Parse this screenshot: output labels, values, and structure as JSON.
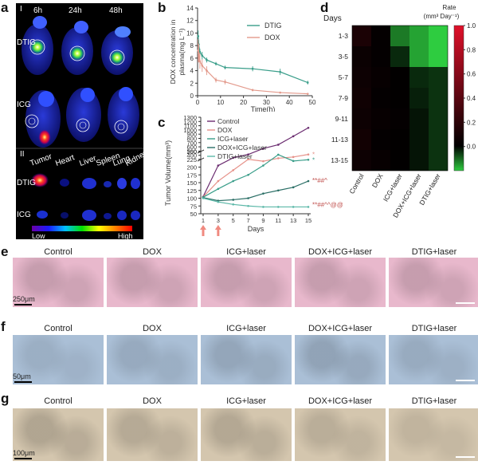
{
  "panel_labels": {
    "a": "a",
    "b": "b",
    "c": "c",
    "d": "d",
    "e": "e",
    "f": "f",
    "g": "g"
  },
  "panel_a": {
    "section_I": "I",
    "section_II": "II",
    "times": [
      "6h",
      "24h",
      "48h"
    ],
    "rows": [
      "DTIG",
      "ICG"
    ],
    "organs": [
      "Tumor",
      "Heart",
      "Liver",
      "Spleen",
      "Lung",
      "Kidney"
    ],
    "organ_rows": [
      "DTIG",
      "ICG"
    ],
    "colorbar_low": "Low",
    "colorbar_high": "High"
  },
  "panel_b": {
    "ylabel_line1": "DOX concentration in",
    "ylabel_line2": "plasma(mg L⁻¹)",
    "xlabel": "Time(h)"
  },
  "panel_c": {
    "ylabel": "Tumor Volume(mm³)",
    "xlabel": "Days",
    "sig_dox": "*",
    "sig_icg": "*",
    "sig_doxicg": "**##^",
    "sig_dtig": "**##^^@@"
  },
  "panel_d": {
    "title": "Days",
    "cbar_title_line1": "Rate",
    "cbar_title_line2": "(mm³ Day⁻¹)"
  },
  "histology": {
    "groups": [
      "Control",
      "DOX",
      "ICG+laser",
      "DOX+ICG+laser",
      "DTIG+laser"
    ],
    "scale_e": "250μm",
    "scale_f": "50μm",
    "scale_g": "100μm"
  },
  "chart_data": [
    {
      "type": "line",
      "panel": "b",
      "title": "",
      "xlabel": "Time(h)",
      "ylabel": "DOX concentration in plasma(mg L⁻¹)",
      "xlim": [
        0,
        50
      ],
      "ylim": [
        0,
        14
      ],
      "xticks": [
        0,
        10,
        20,
        30,
        40,
        50
      ],
      "yticks": [
        0,
        2,
        4,
        6,
        8,
        10,
        12,
        14
      ],
      "series": [
        {
          "name": "DTIG",
          "color": "#3a9e8a",
          "x": [
            0.25,
            0.5,
            1,
            2,
            4,
            8,
            12,
            24,
            36,
            48
          ],
          "y": [
            9.5,
            8.2,
            7.0,
            6.4,
            5.7,
            5.1,
            4.5,
            4.3,
            3.8,
            2.1
          ],
          "err": [
            0.9,
            0.7,
            0.5,
            0.6,
            0.4,
            0.3,
            0.3,
            0.4,
            0.5,
            0.3
          ]
        },
        {
          "name": "DOX",
          "color": "#e39a8c",
          "x": [
            0.25,
            0.5,
            1,
            2,
            4,
            8,
            12,
            24,
            36,
            48
          ],
          "y": [
            7.2,
            6.8,
            5.5,
            4.8,
            4.0,
            2.5,
            2.2,
            0.9,
            0.5,
            0.3
          ],
          "err": [
            1.8,
            1.5,
            1.2,
            1.0,
            0.7,
            0.4,
            0.4,
            0.2,
            0.1,
            0.1
          ]
        }
      ]
    },
    {
      "type": "line",
      "panel": "c",
      "title": "",
      "xlabel": "Days",
      "ylabel": "Tumor Volume(mm³)",
      "x": [
        1,
        3,
        5,
        7,
        9,
        11,
        13,
        15
      ],
      "yticks_lower": [
        50,
        75,
        100,
        125,
        150,
        175,
        200,
        225,
        250
      ],
      "yticks_upper": [
        300,
        400,
        500,
        600,
        700,
        800,
        900,
        1000,
        1100,
        1200,
        1300
      ],
      "ybreak": [
        250,
        300
      ],
      "laser_days": [
        1,
        3
      ],
      "series": [
        {
          "name": "Control",
          "color": "#6b2c70",
          "y": [
            105,
            205,
            340,
            420,
            560,
            650,
            850,
            1050
          ]
        },
        {
          "name": "DOX",
          "color": "#e6928a",
          "y": [
            104,
            155,
            190,
            225,
            260,
            330,
            360,
            420
          ]
        },
        {
          "name": "ICG+laser",
          "color": "#3a9e8a",
          "y": [
            103,
            130,
            155,
            175,
            205,
            240,
            265,
            295
          ]
        },
        {
          "name": "DOX+ICG+laser",
          "color": "#2b6f66",
          "y": [
            102,
            92,
            95,
            100,
            115,
            125,
            135,
            155
          ]
        },
        {
          "name": "DTIG+laser",
          "color": "#5cb8a8",
          "y": [
            100,
            88,
            80,
            75,
            72,
            72,
            72,
            72
          ]
        }
      ]
    },
    {
      "type": "heatmap",
      "panel": "d",
      "title": "",
      "columns": [
        "Control",
        "DOX",
        "ICG+laser",
        "DOX+ICG+laser",
        "DTIG+laser"
      ],
      "rows": [
        "1-3",
        "3-5",
        "5-7",
        "7-9",
        "9-11",
        "11-13",
        "13-15"
      ],
      "colorbar": {
        "min": -0.2,
        "max": 1.0,
        "ticks": [
          "1.0",
          "0.8",
          "0.6",
          "0.4",
          "0.2",
          "0.0"
        ],
        "low_color": "#2ecc40",
        "mid_color": "#000000",
        "high_color": "#e0102a"
      },
      "values": [
        [
          0.12,
          0.02,
          -0.12,
          -0.16,
          -0.22
        ],
        [
          0.05,
          0.02,
          -0.04,
          -0.16,
          -0.2
        ],
        [
          0.06,
          0.03,
          0.01,
          -0.04,
          -0.05
        ],
        [
          0.07,
          0.02,
          0.01,
          -0.03,
          -0.05
        ],
        [
          0.06,
          0.03,
          0.02,
          -0.02,
          -0.05
        ],
        [
          0.08,
          0.02,
          0.01,
          -0.02,
          -0.05
        ],
        [
          0.06,
          0.03,
          0.01,
          -0.02,
          -0.05
        ]
      ]
    }
  ]
}
